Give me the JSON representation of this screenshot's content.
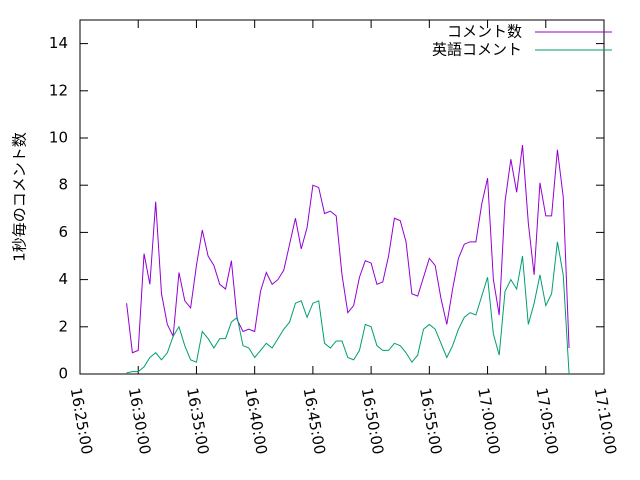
{
  "chart_data": {
    "type": "line",
    "ylabel": "1秒毎のコメント数",
    "x": [
      "16:29:00",
      "16:29:30",
      "16:30:00",
      "16:30:30",
      "16:31:00",
      "16:31:30",
      "16:32:00",
      "16:32:30",
      "16:33:00",
      "16:33:30",
      "16:34:00",
      "16:34:30",
      "16:35:00",
      "16:35:30",
      "16:36:00",
      "16:36:30",
      "16:37:00",
      "16:37:30",
      "16:38:00",
      "16:38:30",
      "16:39:00",
      "16:39:30",
      "16:40:00",
      "16:40:30",
      "16:41:00",
      "16:41:30",
      "16:42:00",
      "16:42:30",
      "16:43:00",
      "16:43:30",
      "16:44:00",
      "16:44:30",
      "16:45:00",
      "16:45:30",
      "16:46:00",
      "16:46:30",
      "16:47:00",
      "16:47:30",
      "16:48:00",
      "16:48:30",
      "16:49:00",
      "16:49:30",
      "16:50:00",
      "16:50:30",
      "16:51:00",
      "16:51:30",
      "16:52:00",
      "16:52:30",
      "16:53:00",
      "16:53:30",
      "16:54:00",
      "16:54:30",
      "16:55:00",
      "16:55:30",
      "16:56:00",
      "16:56:30",
      "16:57:00",
      "16:57:30",
      "16:58:00",
      "16:58:30",
      "16:59:00",
      "16:59:30",
      "17:00:00",
      "17:00:30",
      "17:01:00",
      "17:01:30",
      "17:02:00",
      "17:02:30",
      "17:03:00",
      "17:03:30",
      "17:04:00",
      "17:04:30",
      "17:05:00",
      "17:05:30",
      "17:06:00",
      "17:06:30",
      "17:07:00"
    ],
    "series": [
      {
        "name": "コメント数",
        "color": "#9400d3",
        "values": [
          3.0,
          0.9,
          1.0,
          5.1,
          3.8,
          7.3,
          3.4,
          2.1,
          1.6,
          4.3,
          3.1,
          2.8,
          4.6,
          6.1,
          5.0,
          4.6,
          3.8,
          3.6,
          4.8,
          2.3,
          1.8,
          1.9,
          1.8,
          3.5,
          4.3,
          3.8,
          4.0,
          4.4,
          5.5,
          6.6,
          5.3,
          6.2,
          8.0,
          7.9,
          6.8,
          6.9,
          6.7,
          4.2,
          2.6,
          2.9,
          4.1,
          4.8,
          4.7,
          3.8,
          3.9,
          5.0,
          6.6,
          6.5,
          5.6,
          3.4,
          3.3,
          4.1,
          4.9,
          4.6,
          3.2,
          2.1,
          3.6,
          4.9,
          5.5,
          5.6,
          5.6,
          7.2,
          8.3,
          4.0,
          2.5,
          7.3,
          9.1,
          7.7,
          9.7,
          6.4,
          4.2,
          8.1,
          6.7,
          6.7,
          9.5,
          7.5,
          1.1
        ]
      },
      {
        "name": "英語コメント",
        "color": "#009e73",
        "values": [
          0.05,
          0.1,
          0.1,
          0.3,
          0.7,
          0.9,
          0.6,
          0.9,
          1.6,
          2.0,
          1.2,
          0.6,
          0.5,
          1.8,
          1.5,
          1.1,
          1.5,
          1.5,
          2.2,
          2.4,
          1.2,
          1.1,
          0.7,
          1.0,
          1.3,
          1.1,
          1.5,
          1.9,
          2.2,
          3.0,
          3.1,
          2.4,
          3.0,
          3.1,
          1.3,
          1.1,
          1.4,
          1.4,
          0.7,
          0.6,
          1.0,
          2.1,
          2.0,
          1.2,
          1.0,
          1.0,
          1.3,
          1.2,
          0.9,
          0.5,
          0.8,
          1.9,
          2.1,
          1.9,
          1.3,
          0.7,
          1.2,
          1.9,
          2.4,
          2.6,
          2.5,
          3.3,
          4.1,
          1.7,
          0.8,
          3.5,
          4.0,
          3.6,
          5.0,
          2.1,
          3.0,
          4.2,
          2.9,
          3.4,
          5.6,
          4.2,
          0.0
        ]
      }
    ],
    "xlim": [
      "16:25:00",
      "17:10:00"
    ],
    "xticks": [
      "16:25:00",
      "16:30:00",
      "16:35:00",
      "16:40:00",
      "16:45:00",
      "16:50:00",
      "16:55:00",
      "17:00:00",
      "17:05:00",
      "17:10:00"
    ],
    "ylim": [
      0,
      15
    ],
    "yticks": [
      0,
      2,
      4,
      6,
      8,
      10,
      12,
      14
    ],
    "legend": "top-right"
  }
}
